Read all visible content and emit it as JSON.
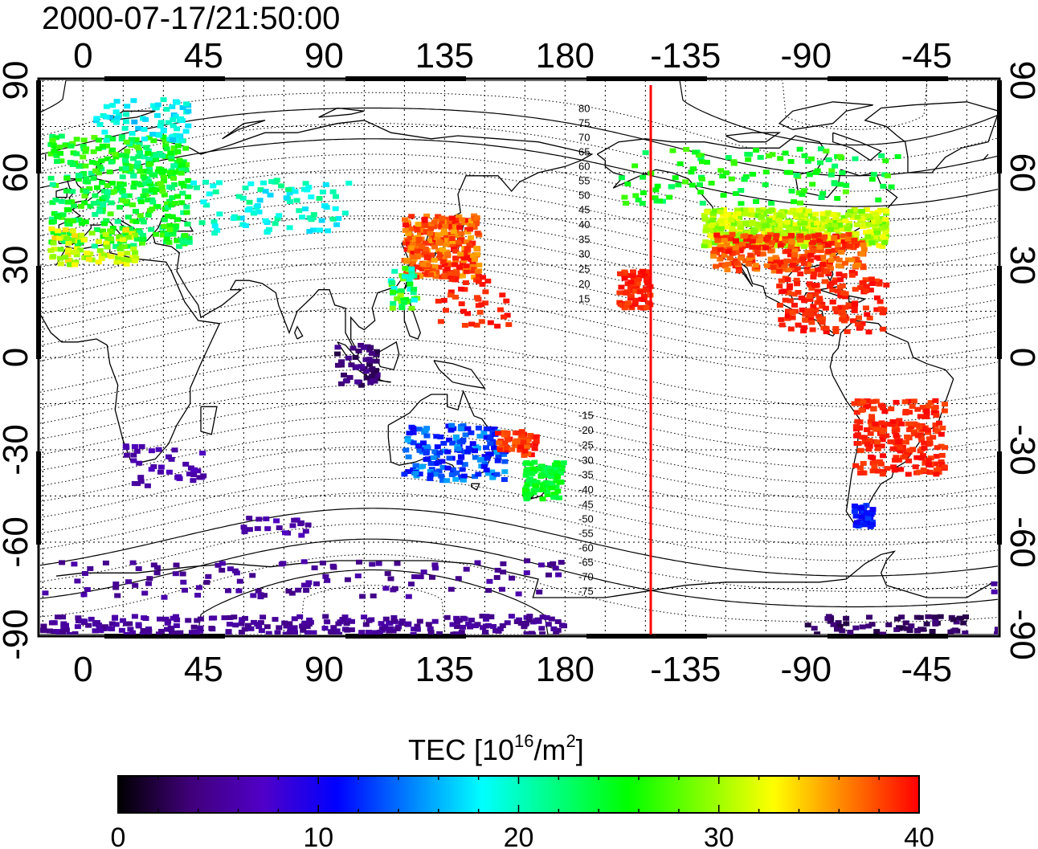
{
  "timestamp": "2000-07-17/21:50:00",
  "map": {
    "lon_ticks": [
      "0",
      "45",
      "90",
      "135",
      "180",
      "-135",
      "-90",
      "-45"
    ],
    "lat_ticks_left": [
      "90",
      "60",
      "30",
      "0",
      "-30",
      "-60",
      "-90"
    ],
    "lat_ticks_right": [
      "90",
      "60",
      "30",
      "0",
      "-30",
      "-60",
      "-90"
    ],
    "maglat_labels": [
      "80",
      "75",
      "70",
      "65",
      "60",
      "55",
      "50",
      "45",
      "40",
      "35",
      "30",
      "25",
      "20",
      "15",
      "-15",
      "-20",
      "-25",
      "-30",
      "-35",
      "-40",
      "-45",
      "-50",
      "-55",
      "-60",
      "-65",
      "-70",
      "-75"
    ],
    "terminator_lon": -148
  },
  "colorbar": {
    "title_main": "TEC  [10",
    "title_sup1": "16",
    "title_mid": "/m",
    "title_sup2": "2",
    "title_end": "]",
    "min": 0,
    "max": 40,
    "tick_labels": [
      "0",
      "10",
      "20",
      "30",
      "40"
    ],
    "colors": [
      "#000000",
      "#40007a",
      "#5000c8",
      "#0000ff",
      "#0080ff",
      "#00ffff",
      "#00ff80",
      "#00ff00",
      "#80ff00",
      "#ffff00",
      "#ff8000",
      "#ff0000"
    ]
  }
}
